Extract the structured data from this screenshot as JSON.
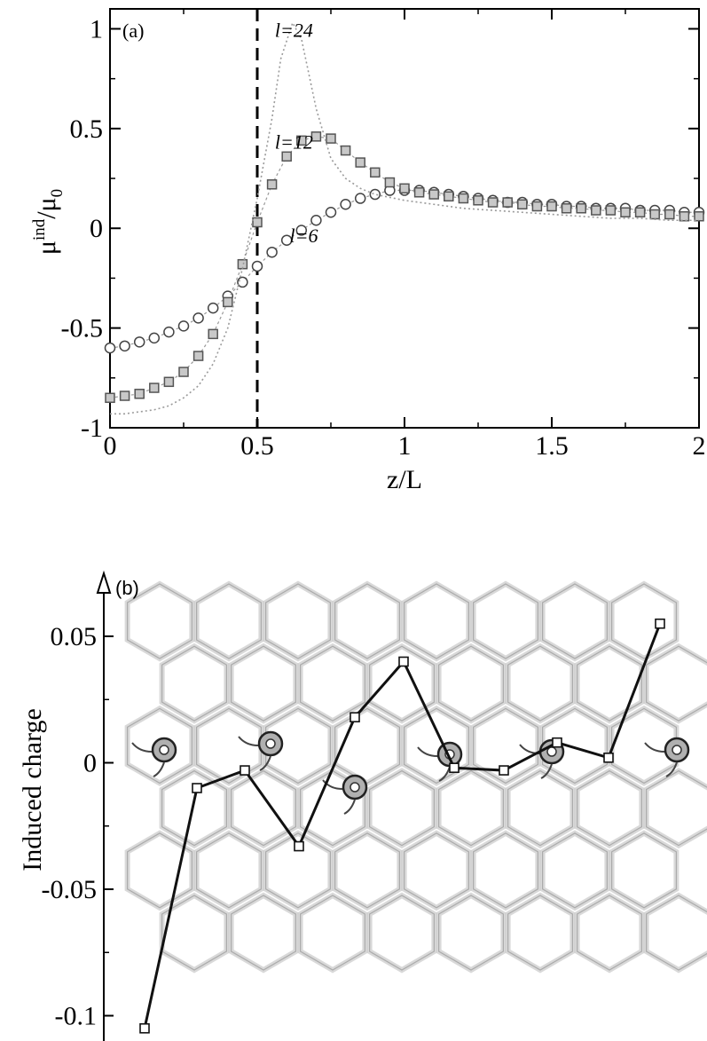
{
  "chart_data": [
    {
      "panel": "(a)",
      "type": "scatter",
      "xlabel": "z/L",
      "ylabel_main": "μ",
      "ylabel_sup": "ind",
      "ylabel_rest": "/μ",
      "ylabel_sub": "0",
      "xlim": [
        0,
        2
      ],
      "ylim": [
        -1,
        1.1
      ],
      "xticks": [
        {
          "v": 0,
          "label": "0"
        },
        {
          "v": 0.5,
          "label": "0.5"
        },
        {
          "v": 1,
          "label": "1"
        },
        {
          "v": 1.5,
          "label": "1.5"
        },
        {
          "v": 2,
          "label": "2"
        }
      ],
      "yticks": [
        {
          "v": -1,
          "label": "-1"
        },
        {
          "v": -0.5,
          "label": "-0.5"
        },
        {
          "v": 0,
          "label": "0"
        },
        {
          "v": 0.5,
          "label": "0.5"
        },
        {
          "v": 1,
          "label": "1"
        }
      ],
      "vline_x": 0.5,
      "annotations": [
        {
          "text": "l=24",
          "x": 0.56,
          "y": 0.96
        },
        {
          "text": "l=12",
          "x": 0.56,
          "y": 0.4
        },
        {
          "text": "l=6",
          "x": 0.61,
          "y": -0.07
        }
      ],
      "series": [
        {
          "name": "l=6",
          "marker": "circle",
          "x": [
            0,
            0.05,
            0.1,
            0.15,
            0.2,
            0.25,
            0.3,
            0.35,
            0.4,
            0.45,
            0.5,
            0.55,
            0.6,
            0.65,
            0.7,
            0.75,
            0.8,
            0.85,
            0.9,
            0.95,
            1.0,
            1.05,
            1.1,
            1.15,
            1.2,
            1.25,
            1.3,
            1.35,
            1.4,
            1.45,
            1.5,
            1.55,
            1.6,
            1.65,
            1.7,
            1.75,
            1.8,
            1.85,
            1.9,
            1.95,
            2.0
          ],
          "y": [
            -0.6,
            -0.59,
            -0.57,
            -0.55,
            -0.52,
            -0.49,
            -0.45,
            -0.4,
            -0.34,
            -0.27,
            -0.19,
            -0.12,
            -0.06,
            -0.01,
            0.04,
            0.08,
            0.12,
            0.15,
            0.17,
            0.19,
            0.19,
            0.19,
            0.18,
            0.17,
            0.16,
            0.15,
            0.14,
            0.13,
            0.13,
            0.12,
            0.12,
            0.11,
            0.11,
            0.1,
            0.1,
            0.1,
            0.09,
            0.09,
            0.09,
            0.08,
            0.08
          ]
        },
        {
          "name": "l=12",
          "marker": "square",
          "x": [
            0,
            0.05,
            0.1,
            0.15,
            0.2,
            0.25,
            0.3,
            0.35,
            0.4,
            0.45,
            0.5,
            0.55,
            0.6,
            0.65,
            0.7,
            0.75,
            0.8,
            0.85,
            0.9,
            0.95,
            1.0,
            1.05,
            1.1,
            1.15,
            1.2,
            1.25,
            1.3,
            1.35,
            1.4,
            1.45,
            1.5,
            1.55,
            1.6,
            1.65,
            1.7,
            1.75,
            1.8,
            1.85,
            1.9,
            1.95,
            2.0
          ],
          "y": [
            -0.85,
            -0.84,
            -0.83,
            -0.8,
            -0.77,
            -0.72,
            -0.64,
            -0.53,
            -0.37,
            -0.18,
            0.03,
            0.22,
            0.36,
            0.44,
            0.46,
            0.45,
            0.39,
            0.33,
            0.28,
            0.23,
            0.2,
            0.18,
            0.17,
            0.16,
            0.15,
            0.14,
            0.13,
            0.13,
            0.12,
            0.11,
            0.11,
            0.1,
            0.1,
            0.09,
            0.09,
            0.08,
            0.08,
            0.07,
            0.07,
            0.06,
            0.06
          ]
        },
        {
          "name": "l=24",
          "marker": "line",
          "x": [
            0,
            0.05,
            0.1,
            0.15,
            0.2,
            0.25,
            0.3,
            0.35,
            0.4,
            0.45,
            0.5,
            0.55,
            0.58,
            0.62,
            0.65,
            0.7,
            0.75,
            0.8,
            0.85,
            0.9,
            1.0,
            1.1,
            1.2,
            1.3,
            1.4,
            1.5,
            1.6,
            1.7,
            1.8,
            1.9,
            2.0
          ],
          "y": [
            -0.93,
            -0.93,
            -0.92,
            -0.91,
            -0.89,
            -0.85,
            -0.79,
            -0.68,
            -0.5,
            -0.2,
            0.15,
            0.55,
            0.85,
            1.03,
            0.95,
            0.6,
            0.35,
            0.25,
            0.2,
            0.17,
            0.14,
            0.12,
            0.1,
            0.09,
            0.08,
            0.07,
            0.06,
            0.05,
            0.05,
            0.04,
            0.04
          ]
        }
      ]
    },
    {
      "panel": "(b)",
      "type": "line",
      "ylabel": "Induced charge",
      "ylim": [
        -0.11,
        0.07
      ],
      "yticks": [
        {
          "v": 0.05,
          "label": "0.05"
        },
        {
          "v": 0,
          "label": "0"
        },
        {
          "v": -0.05,
          "label": "-0.05"
        },
        {
          "v": -0.1,
          "label": "-0.1"
        }
      ],
      "series": [
        {
          "name": "",
          "marker": "square",
          "x": [
            1,
            2,
            3,
            4,
            5,
            6,
            7,
            8,
            9,
            10,
            11
          ],
          "y": [
            -0.105,
            -0.01,
            -0.003,
            -0.033,
            0.018,
            0.04,
            -0.002,
            -0.003,
            0.008,
            0.002,
            0.055
          ]
        }
      ]
    }
  ]
}
